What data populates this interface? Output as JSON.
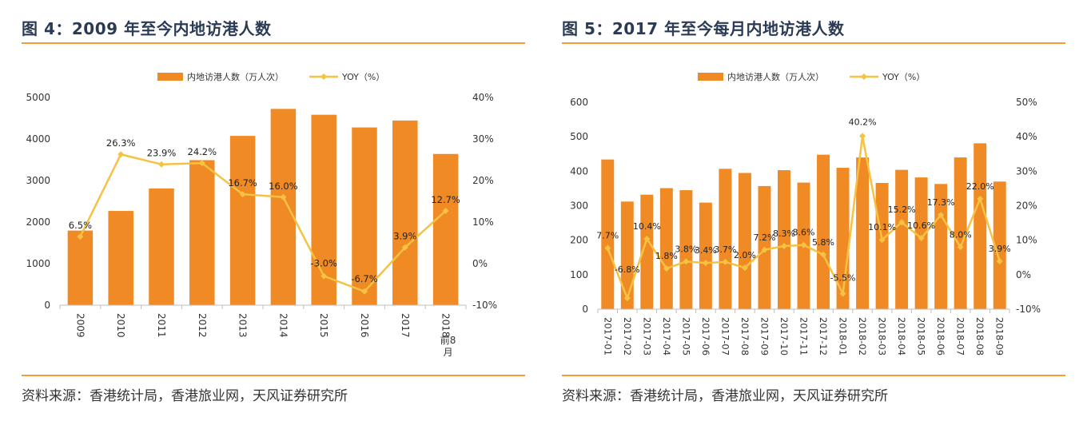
{
  "colors": {
    "bar": "#f08a24",
    "line": "#f5c242",
    "rule": "#f39c3a",
    "title": "#2b3a55"
  },
  "left_panel": {
    "title": "图 4：2009 年至今内地访港人数",
    "source": "资料来源：香港统计局，香港旅业网，天风证券研究所"
  },
  "right_panel": {
    "title": "图 5：2017 年至今每月内地访港人数",
    "source": "资料来源：香港统计局，香港旅业网，天风证券研究所"
  },
  "chart_data": [
    {
      "type": "bar",
      "title": "图 4：2009 年至今内地访港人数",
      "categories": [
        "2009",
        "2010",
        "2011",
        "2012",
        "2013",
        "2014",
        "2015",
        "2016",
        "2017",
        "2018前8月"
      ],
      "category_labels": [
        "2009",
        "2010",
        "2011",
        "2012",
        "2013",
        "2014",
        "2015",
        "2016",
        "2017",
        "2018\n前8\n月"
      ],
      "series": [
        {
          "name": "内地访港人数（万人次）",
          "type": "bar",
          "axis": "left",
          "values": [
            1796,
            2268,
            2810,
            3491,
            4075,
            4725,
            4584,
            4278,
            4445,
            3640
          ]
        },
        {
          "name": "YOY（%）",
          "type": "line",
          "axis": "right",
          "values": [
            6.5,
            26.3,
            23.9,
            24.2,
            16.7,
            16.0,
            -3.0,
            -6.7,
            3.9,
            12.7
          ],
          "labels": [
            "6.5%",
            "26.3%",
            "23.9%",
            "24.2%",
            "16.7%",
            "16.0%",
            "-3.0%",
            "-6.7%",
            "3.9%",
            "12.7%"
          ]
        }
      ],
      "ylim": [
        0,
        5000
      ],
      "yticks": [
        "0",
        "1000",
        "2000",
        "3000",
        "4000",
        "5000"
      ],
      "y2lim": [
        -10,
        40
      ],
      "y2ticks": [
        "-10%",
        "0%",
        "10%",
        "20%",
        "30%",
        "40%"
      ],
      "legend": [
        "内地访港人数（万人次）",
        "YOY（%）"
      ]
    },
    {
      "type": "bar",
      "title": "图 5：2017 年至今每月内地访港人数",
      "categories": [
        "2017-01",
        "2017-02",
        "2017-03",
        "2017-04",
        "2017-05",
        "2017-06",
        "2017-07",
        "2017-08",
        "2017-09",
        "2017-10",
        "2017-11",
        "2017-12",
        "2018-01",
        "2018-02",
        "2018-03",
        "2018-04",
        "2018-05",
        "2018-06",
        "2018-07",
        "2018-08",
        "2018-09"
      ],
      "series": [
        {
          "name": "内地访港人数（万人次）",
          "type": "bar",
          "axis": "left",
          "values": [
            434,
            312,
            332,
            351,
            345,
            309,
            407,
            395,
            357,
            403,
            367,
            448,
            410,
            440,
            366,
            404,
            382,
            363,
            440,
            481,
            370
          ]
        },
        {
          "name": "YOY（%）",
          "type": "line",
          "axis": "right",
          "values": [
            7.7,
            -6.8,
            10.4,
            1.8,
            3.8,
            3.4,
            3.7,
            2.0,
            7.2,
            8.3,
            8.6,
            5.8,
            -5.5,
            40.2,
            10.1,
            15.2,
            10.6,
            17.3,
            8.0,
            22.0,
            3.9
          ],
          "labels": [
            "7.7%",
            "-6.8%",
            "10.4%",
            "1.8%",
            "3.8%",
            "3.4%",
            "3.7%",
            "2.0%",
            "7.2%",
            "8.3%",
            "8.6%",
            "5.8%",
            "-5.5%",
            "40.2%",
            "10.1%",
            "15.2%",
            "10.6%",
            "17.3%",
            "8.0%",
            "22.0%",
            "3.9%"
          ]
        }
      ],
      "ylim": [
        0,
        600
      ],
      "yticks": [
        "0",
        "100",
        "200",
        "300",
        "400",
        "500",
        "600"
      ],
      "y2lim": [
        -10,
        50
      ],
      "y2ticks": [
        "-10%",
        "0%",
        "10%",
        "20%",
        "30%",
        "40%",
        "50%"
      ],
      "legend": [
        "内地访港人数（万人次）",
        "YOY（%）"
      ]
    }
  ]
}
